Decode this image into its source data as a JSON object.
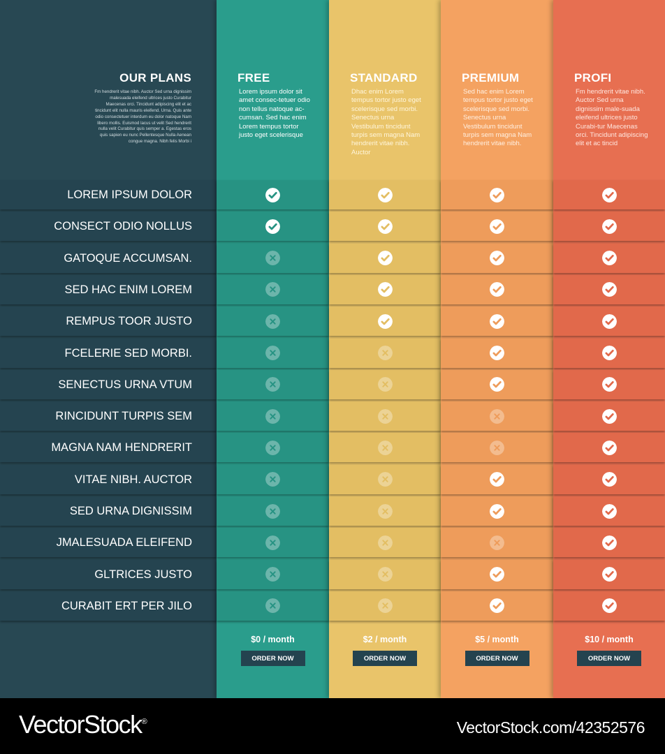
{
  "sidebar": {
    "title": "OUR PLANS",
    "description": "Fm hendrerit vitae nibh. Auctor Sed urna dignissim malesuada eleifend ultrices justo Curabitur Maecenas orci. Tincidunt adipiscing elit et ac tincidunt elit nulla mauris eleifend. Urna. Quis ante odio consectetuer interdum eu dolor natoque Nam libero mollis. Euismod lacus ut velit Sed hendrerit nulla velit Curabitur quis semper a. Egestas eros quis sapien eu nunc Pellentesque Nulla Aenean congue magna. Nibh felis Morbi i"
  },
  "features": [
    "LOREM IPSUM DOLOR",
    "CONSECT ODIO NOLLUS",
    "GATOQUE ACCUMSAN.",
    "SED HAC ENIM LOREM",
    "REMPUS TOOR JUSTO",
    "FCELERIE SED MORBI.",
    "SENECTUS URNA VTUM",
    "RINCIDUNT TURPIS SEM",
    "MAGNA NAM HENDRERIT",
    "VITAE NIBH. AUCTOR",
    "SED URNA DIGNISSIM",
    "JMALESUADA ELEIFEND",
    "GLTRICES JUSTO",
    "CURABIT ERT PER JILO"
  ],
  "plans": [
    {
      "name": "FREE",
      "description": "Lorem ipsum dolor sit amet consec-tetuer odio non tellus natoque ac-cumsan. Sed hac enim Lorem tempus tortor justo eget scelerisque",
      "price": "$0 / month",
      "order_label": "ORDER NOW",
      "color": "#2a9d8c",
      "row_color": "#279383",
      "text_color": "#ffffff",
      "features": [
        true,
        true,
        false,
        false,
        false,
        false,
        false,
        false,
        false,
        false,
        false,
        false,
        false,
        false
      ]
    },
    {
      "name": "STANDARD",
      "description": "Dhac enim Lorem tempus tortor justo eget scelerisque sed morbi. Senectus urna Vestibulum tincidunt turpis sem magna Nam hendrerit vitae nibh. Auctor",
      "price": "$2 / month",
      "order_label": "ORDER NOW",
      "color": "#e9c46a",
      "row_color": "#e3be63",
      "text_color": "#fff6dc",
      "features": [
        true,
        true,
        true,
        true,
        true,
        false,
        false,
        false,
        false,
        false,
        false,
        false,
        false,
        false
      ]
    },
    {
      "name": "PREMIUM",
      "description": "Sed hac enim Lorem tempus tortor justo eget scelerisque sed morbi. Senectus urna Vestibulum tincidunt turpis sem magna Nam hendrerit vitae nibh.",
      "price": "$5 / month",
      "order_label": "ORDER NOW",
      "color": "#f4a261",
      "row_color": "#ee9c5b",
      "text_color": "#fff0e2",
      "features": [
        true,
        true,
        true,
        true,
        true,
        true,
        true,
        false,
        false,
        true,
        true,
        false,
        true,
        true
      ]
    },
    {
      "name": "PROFI",
      "description": "Fm hendrerit vitae nibh. Auctor Sed urna dignissim male-suada eleifend ultrices justo Curabi-tur Maecenas orci. Tincidunt adipiscing elit et ac tincid",
      "price": "$10 / month",
      "order_label": "ORDER NOW",
      "color": "#e76f51",
      "row_color": "#e1694b",
      "text_color": "#ffe7e0",
      "features": [
        true,
        true,
        true,
        true,
        true,
        true,
        true,
        true,
        true,
        true,
        true,
        true,
        true,
        true
      ]
    }
  ],
  "icons": {
    "included": "check-icon",
    "excluded": "cross-icon"
  },
  "colors": {
    "sidebar": "#284853",
    "sidebar_row": "#254450",
    "button": "#24434f"
  },
  "watermark": {
    "logo": "VectorStock",
    "registered_mark": "®",
    "image_id": "VectorStock.com/42352576"
  }
}
